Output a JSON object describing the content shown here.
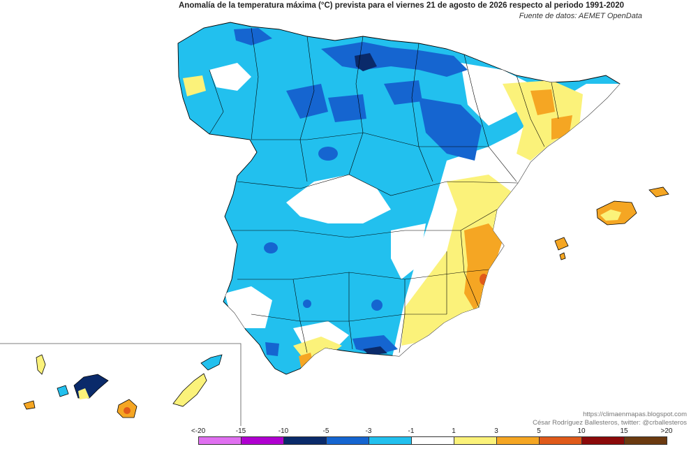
{
  "header": {
    "title": "Anomalía de la temperatura máxima (°C) prevista para el viernes 21 de agosto de 2026 respecto al periodo 1991-2020",
    "source": "Fuente de datos: AEMET OpenData"
  },
  "credits": {
    "blog": "https://climaenmapas.blogspot.com",
    "author": "César Rodríguez Ballesteros, twitter: @crballesteros"
  },
  "legend": {
    "ticks": [
      "<-20",
      "-15",
      "-10",
      "-5",
      "-3",
      "-1",
      "1",
      "3",
      "5",
      "10",
      "15",
      ">20"
    ],
    "colors": [
      "#e070f0",
      "#b000d0",
      "#0a2a6a",
      "#1565d0",
      "#22c0ee",
      "#ffffff",
      "#fbf27a",
      "#f5a623",
      "#e05a1a",
      "#8b0a0a",
      "#6b3a10"
    ]
  },
  "colors": {
    "dark_navy": "#0a2a6a",
    "blue": "#1565d0",
    "cyan": "#22c0ee",
    "white": "#ffffff",
    "yellow": "#fbf27a",
    "orange": "#f5a623",
    "red_orange": "#e05a1a"
  }
}
